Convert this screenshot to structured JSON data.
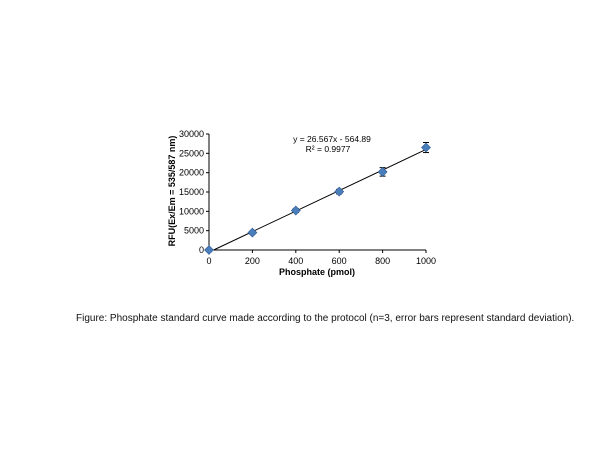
{
  "chart_data": {
    "type": "scatter",
    "xlabel": "Phosphate (pmol)",
    "ylabel": "RFU(Ex/Em = 535/587 nm)",
    "xlim": [
      0,
      1000
    ],
    "ylim": [
      0,
      30000
    ],
    "x_ticks": [
      0,
      200,
      400,
      600,
      800,
      1000
    ],
    "y_ticks": [
      0,
      5000,
      10000,
      15000,
      20000,
      25000,
      30000
    ],
    "grid": false,
    "legend": "none",
    "marker_color": "#4a7ebb",
    "series": [
      {
        "x": [
          0,
          200,
          400,
          600,
          800,
          1000
        ],
        "y": [
          0,
          4500,
          10200,
          15100,
          20200,
          26500
        ],
        "error": [
          0,
          400,
          500,
          600,
          1100,
          1300
        ]
      }
    ],
    "trendline": {
      "slope": 26.567,
      "intercept": -564.89,
      "equation": "y = 26.567x - 564.89",
      "r_squared": "R² = 0.9977"
    }
  },
  "caption": "Figure: Phosphate standard curve made according to the protocol (n=3, error bars represent standard deviation)."
}
